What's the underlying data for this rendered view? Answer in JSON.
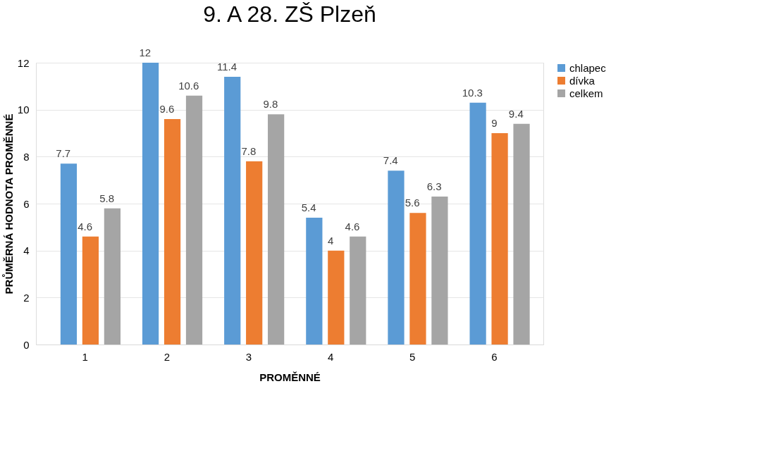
{
  "chart_data": {
    "type": "bar",
    "title": "9. A 28. ZŠ Plzeň",
    "xlabel": "PROMĚNNÉ",
    "ylabel": "PRŮMĚRNÁ HODNOTA PROMĚNNÉ",
    "categories": [
      "1",
      "2",
      "3",
      "4",
      "5",
      "6"
    ],
    "series": [
      {
        "name": "chlapec",
        "color": "#5b9bd5",
        "values": [
          7.7,
          12,
          11.4,
          5.4,
          7.4,
          10.3
        ]
      },
      {
        "name": "dívka",
        "color": "#ed7d31",
        "values": [
          4.6,
          9.6,
          7.8,
          4,
          5.6,
          9
        ]
      },
      {
        "name": "celkem",
        "color": "#a5a5a5",
        "values": [
          5.8,
          10.6,
          9.8,
          4.6,
          6.3,
          9.4
        ]
      }
    ],
    "ylim": [
      0,
      12
    ],
    "yticks": [
      0,
      2,
      4,
      6,
      8,
      10,
      12
    ],
    "grid": "y",
    "legend": "right",
    "data_labels": true
  }
}
